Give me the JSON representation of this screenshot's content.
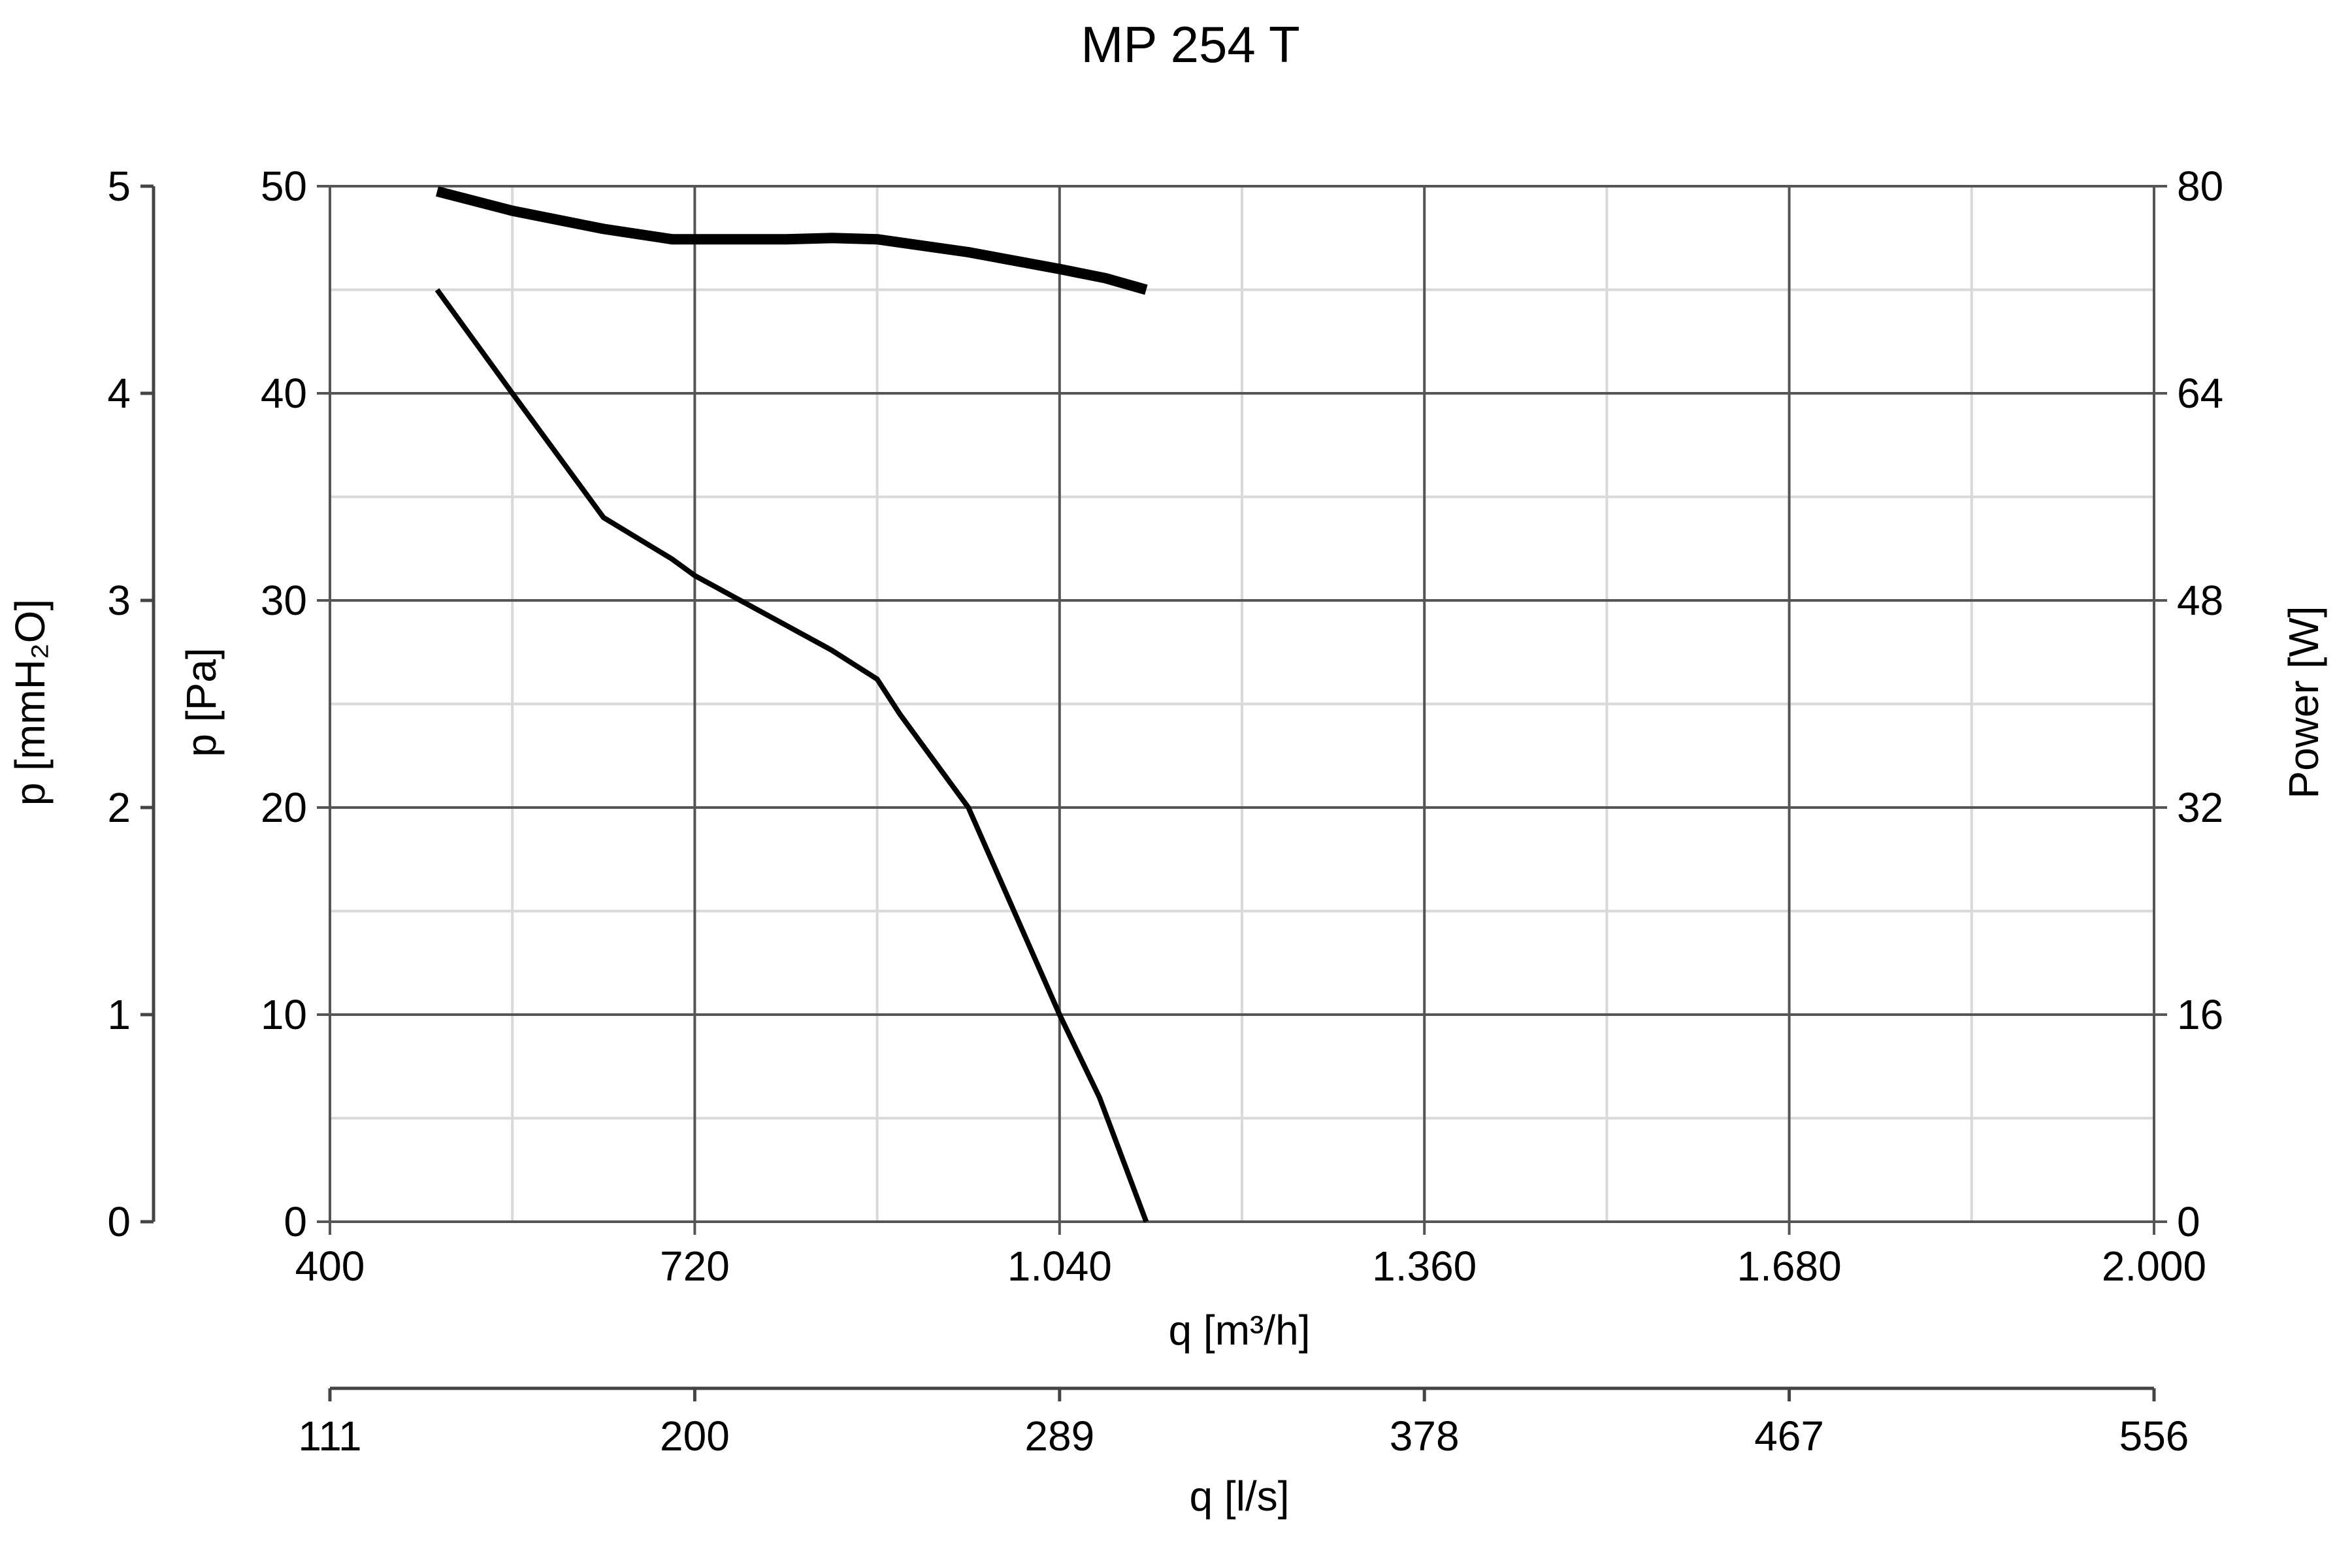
{
  "chart_data": {
    "type": "line",
    "title": "MP 254 T",
    "x_axis": {
      "label": "q [m³/h]",
      "range": [
        400,
        2000
      ],
      "ticks": [
        400,
        720,
        1040,
        1360,
        1680,
        2000
      ],
      "tick_labels": [
        "400",
        "720",
        "1.040",
        "1.360",
        "1.680",
        "2.000"
      ],
      "minor_gridlines": [
        560,
        880,
        1200,
        1520,
        1840
      ]
    },
    "x_axis_secondary": {
      "label": "q [l/s]",
      "range": [
        111,
        556
      ],
      "tick_labels": [
        "111",
        "200",
        "289",
        "378",
        "467",
        "556"
      ]
    },
    "y_axis": {
      "label": "p [Pa]",
      "range": [
        0,
        50
      ],
      "ticks": [
        0,
        10,
        20,
        30,
        40,
        50
      ],
      "tick_labels": [
        "0",
        "10",
        "20",
        "30",
        "40",
        "50"
      ],
      "minor_gridlines": [
        5,
        15,
        25,
        35,
        45
      ]
    },
    "y_axis_secondary_left": {
      "label": "p [mmH₂O]",
      "range": [
        0,
        5
      ],
      "tick_labels": [
        "0",
        "1",
        "2",
        "3",
        "4",
        "5"
      ]
    },
    "y_axis_right": {
      "label": "Power [W]",
      "range": [
        0,
        80
      ],
      "tick_labels": [
        "0",
        "16",
        "32",
        "48",
        "64",
        "80"
      ]
    },
    "grid": true,
    "legend": "none",
    "series": [
      {
        "axis": "right",
        "x": [
          494,
          560,
          640,
          700,
          720,
          760,
          800,
          840,
          880,
          960,
          1040,
          1080,
          1116
        ],
        "y": [
          79.6,
          78.1,
          76.7,
          75.9,
          75.9,
          75.9,
          75.9,
          76.0,
          75.9,
          74.9,
          73.6,
          72.9,
          72.0
        ]
      },
      {
        "axis": "left",
        "x": [
          494,
          560,
          640,
          700,
          720,
          760,
          800,
          840,
          880,
          900,
          960,
          1000,
          1040,
          1075,
          1116
        ],
        "y": [
          45.0,
          40.0,
          34.0,
          32.0,
          31.2,
          30.0,
          28.8,
          27.6,
          26.2,
          24.5,
          20.0,
          15.0,
          10.0,
          6.0,
          0.0
        ]
      }
    ]
  }
}
